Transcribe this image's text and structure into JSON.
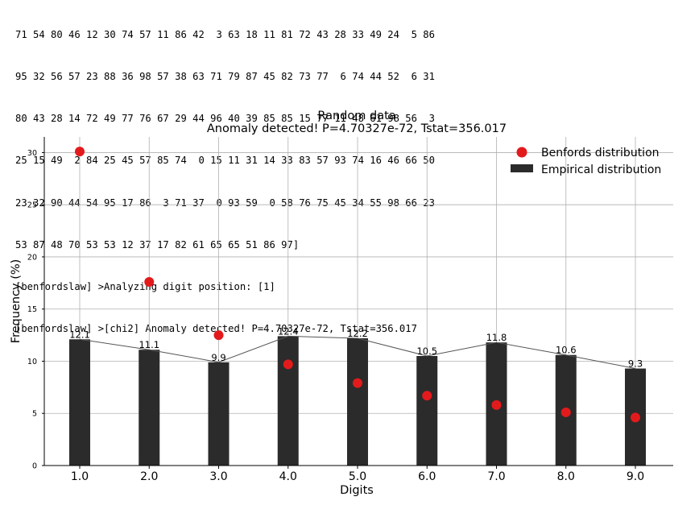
{
  "console": {
    "lines": [
      "71 54 80 46 12 30 74 57 11 86 42  3 63 18 11 81 72 43 28 33 49 24  5 86",
      "95 32 56 57 23 88 36 98 57 38 63 71 79 87 45 82 73 77  6 74 44 52  6 31",
      "80 43 28 14 72 49 77 76 67 29 44 96 40 39 85 85 15 77 11 48 61 98 56  3",
      "25 15 49  2 84 25 45 57 85 74  0 15 11 31 14 33 83 57 93 74 16 46 66 50",
      "23 32 90 44 54 95 17 86  3 71 37  0 93 59  0 58 76 75 45 34 55 98 66 23",
      "53 87 48 70 53 53 12 37 17 82 61 65 65 51 86 97]",
      "[benfordslaw] >Analyzing digit position: [1]",
      "[benfordslaw] >[chi2] Anomaly detected! P=4.70327e-72, Tstat=356.017"
    ]
  },
  "chart_data": {
    "type": "bar",
    "title": "Random data",
    "subtitle": "Anomaly detected! P=4.70327e-72, Tstat=356.017",
    "xlabel": "Digits",
    "ylabel": "Frequency (%)",
    "categories": [
      "1.0",
      "2.0",
      "3.0",
      "4.0",
      "5.0",
      "6.0",
      "7.0",
      "8.0",
      "9.0"
    ],
    "y_ticks": [
      "0",
      "5",
      "10",
      "15",
      "20",
      "25",
      "30"
    ],
    "ylim": [
      0,
      31.5
    ],
    "grid": true,
    "legend_position": "top-right",
    "series": [
      {
        "name": "Empirical distribution",
        "kind": "bar",
        "color": "#2b2b2b",
        "values": [
          12.1,
          11.1,
          9.9,
          12.4,
          12.2,
          10.5,
          11.8,
          10.6,
          9.3
        ],
        "labels": [
          "12.1",
          "11.1",
          "9.9",
          "12.4",
          "12.2",
          "10.5",
          "11.8",
          "10.6",
          "9.3"
        ]
      },
      {
        "name": "Benfords distribution",
        "kind": "scatter",
        "color": "#e31a1c",
        "values": [
          30.1,
          17.6,
          12.5,
          9.7,
          7.9,
          6.7,
          5.8,
          5.1,
          4.6
        ]
      }
    ]
  }
}
